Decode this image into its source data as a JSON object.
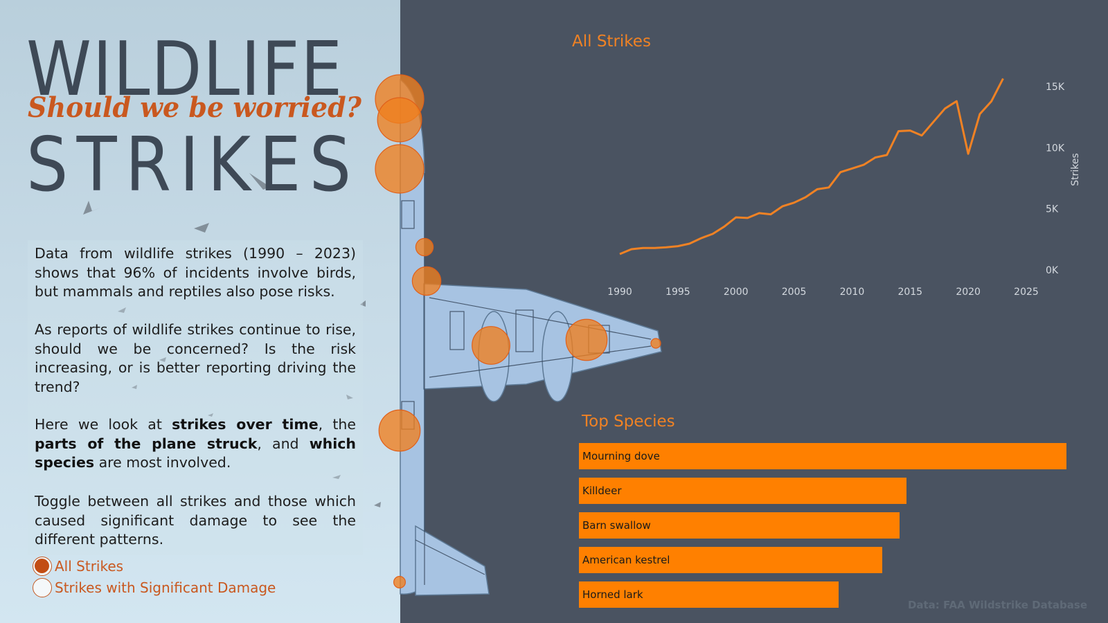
{
  "header": {
    "title_line1": "WILDLIFE",
    "subtitle": "Should we be worried?",
    "title_line2": "STRIKES"
  },
  "intro": {
    "para1": "Data from wildlife strikes (1990 – 2023) shows that 96% of incidents involve birds, but mammals and reptiles also pose risks.",
    "para2": "As reports of wildlife strikes continue to rise, should we be concerned? Is the risk increasing, or is better reporting driving the trend?",
    "para3": {
      "t1": "Here we look at ",
      "b1": "strikes over time",
      "t2": ", the ",
      "b2": "parts of the plane struck",
      "t3": ", and ",
      "b3": "which species",
      "t4": " are most involved."
    },
    "para4": "Toggle between all strikes and those which caused significant damage to see the different patterns."
  },
  "toggle": {
    "options": [
      "All Strikes",
      "Strikes with Significant Damage"
    ],
    "selected": 0
  },
  "colors": {
    "accent": "#ff8000",
    "line": "#f08224",
    "panel_dark": "#4a5361",
    "title_orange": "#c9581f"
  },
  "source": "Data: FAA Wildstrike Database",
  "chart_data": [
    {
      "type": "line",
      "title": "All Strikes",
      "ylabel": "Strikes",
      "xlabel": "",
      "x_ticks": [
        1990,
        1995,
        2000,
        2005,
        2010,
        2015,
        2020,
        2025
      ],
      "y_ticks": [
        0,
        5000,
        10000,
        15000
      ],
      "y_tick_labels": [
        "0K",
        "5K",
        "10K",
        "15K"
      ],
      "xlim": [
        1990,
        2025
      ],
      "ylim": [
        0,
        15000
      ],
      "y_axis_side": "right",
      "grid": false,
      "x": [
        1990,
        1991,
        1992,
        1993,
        1994,
        1995,
        1996,
        1997,
        1998,
        1999,
        2000,
        2001,
        2002,
        2003,
        2004,
        2005,
        2006,
        2007,
        2008,
        2009,
        2010,
        2011,
        2012,
        2013,
        2014,
        2015,
        2016,
        2017,
        2018,
        2019,
        2020,
        2021,
        2022,
        2023
      ],
      "y": [
        1300,
        1700,
        1800,
        1800,
        1850,
        1950,
        2150,
        2600,
        2950,
        3550,
        4300,
        4250,
        4650,
        4550,
        5200,
        5500,
        5950,
        6600,
        6750,
        8000,
        8300,
        8600,
        9200,
        9400,
        11350,
        11400,
        11000,
        12100,
        13200,
        13800,
        9500,
        12750,
        13800,
        15650
      ]
    },
    {
      "type": "bar",
      "orientation": "horizontal",
      "title": "Top Species",
      "categories": [
        "Mourning dove",
        "Killdeer",
        "Barn swallow",
        "American kestrel",
        "Horned lark"
      ],
      "values": [
        100,
        67.2,
        65.8,
        62.2,
        53.3
      ],
      "value_unit": "percent of largest bar"
    }
  ],
  "impact_points": [
    {
      "name": "nose-upper",
      "size": 1.0
    },
    {
      "name": "nose",
      "size": 0.91
    },
    {
      "name": "windshield",
      "size": 1.0
    },
    {
      "name": "fuselage-upper",
      "size": 0.36
    },
    {
      "name": "wing-root",
      "size": 0.59
    },
    {
      "name": "engine-inner",
      "size": 0.78
    },
    {
      "name": "engine-outer",
      "size": 0.85
    },
    {
      "name": "wing-tip",
      "size": 0.2
    },
    {
      "name": "fuselage-lower",
      "size": 0.85
    },
    {
      "name": "tail",
      "size": 0.24
    }
  ]
}
